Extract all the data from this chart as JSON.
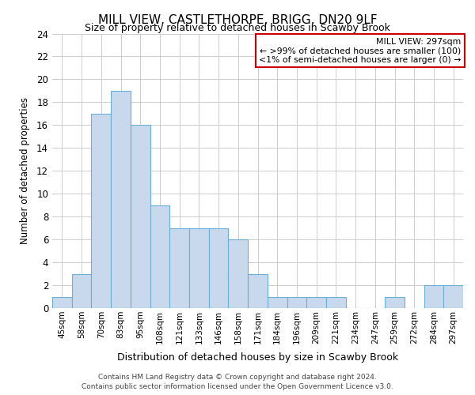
{
  "title": "MILL VIEW, CASTLETHORPE, BRIGG, DN20 9LF",
  "subtitle": "Size of property relative to detached houses in Scawby Brook",
  "xlabel": "Distribution of detached houses by size in Scawby Brook",
  "ylabel": "Number of detached properties",
  "footer_line1": "Contains HM Land Registry data © Crown copyright and database right 2024.",
  "footer_line2": "Contains public sector information licensed under the Open Government Licence v3.0.",
  "categories": [
    "45sqm",
    "58sqm",
    "70sqm",
    "83sqm",
    "95sqm",
    "108sqm",
    "121sqm",
    "133sqm",
    "146sqm",
    "158sqm",
    "171sqm",
    "184sqm",
    "196sqm",
    "209sqm",
    "221sqm",
    "234sqm",
    "247sqm",
    "259sqm",
    "272sqm",
    "284sqm",
    "297sqm"
  ],
  "values": [
    1,
    3,
    17,
    19,
    16,
    9,
    7,
    7,
    7,
    6,
    3,
    1,
    1,
    1,
    1,
    0,
    0,
    1,
    0,
    2,
    2
  ],
  "bar_color": "#c8d9ee",
  "bar_edge_color": "#6baed6",
  "ylim": [
    0,
    24
  ],
  "yticks": [
    0,
    2,
    4,
    6,
    8,
    10,
    12,
    14,
    16,
    18,
    20,
    22,
    24
  ],
  "annotation_title": "MILL VIEW: 297sqm",
  "annotation_line1": "← >99% of detached houses are smaller (100)",
  "annotation_line2": "<1% of semi-detached houses are larger (0) →",
  "annotation_box_color": "#cc0000",
  "background_color": "#ffffff",
  "grid_color": "#cccccc"
}
